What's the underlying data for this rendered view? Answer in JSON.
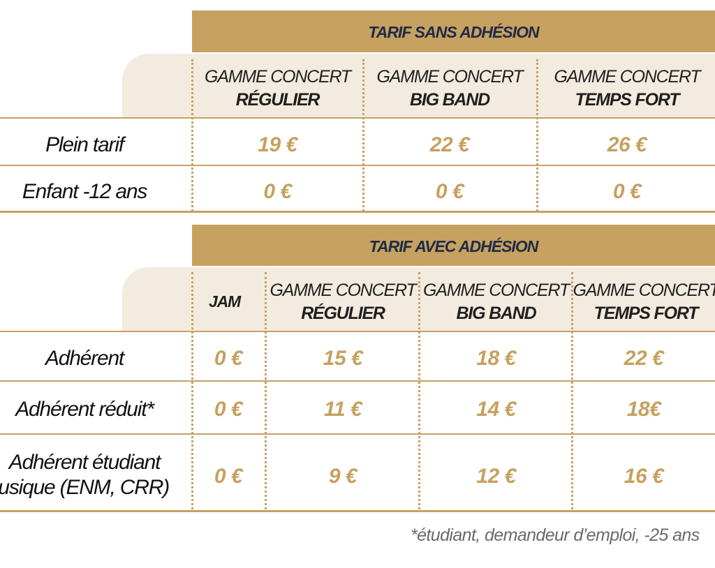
{
  "table1": {
    "band_title": "TARIF SANS ADHÉSION",
    "columns": [
      {
        "line1": "GAMME CONCERT",
        "line2": "RÉGULIER"
      },
      {
        "line1": "GAMME CONCERT",
        "line2": "BIG BAND"
      },
      {
        "line1": "GAMME CONCERT",
        "line2": "TEMPS FORT"
      }
    ],
    "rows": [
      {
        "label": "Plein tarif",
        "prices": [
          "19 €",
          "22 €",
          "26 €"
        ]
      },
      {
        "label": "Enfant -12 ans",
        "prices": [
          "0 €",
          "0 €",
          "0 €"
        ]
      }
    ]
  },
  "table2": {
    "band_title": "TARIF AVEC ADHÉSION",
    "columns": [
      {
        "line1": "JAM",
        "line2": ""
      },
      {
        "line1": "GAMME CONCERT",
        "line2": "RÉGULIER"
      },
      {
        "line1": "GAMME CONCERT",
        "line2": "BIG BAND"
      },
      {
        "line1": "GAMME CONCERT",
        "line2": "TEMPS FORT"
      }
    ],
    "rows": [
      {
        "label": "Adhérent",
        "label2": "",
        "prices": [
          "0 €",
          "15 €",
          "18 €",
          "22 €"
        ]
      },
      {
        "label": "Adhérent réduit*",
        "label2": "",
        "prices": [
          "0 €",
          "11 €",
          "14 €",
          "18€"
        ]
      },
      {
        "label": "Adhérent étudiant",
        "label2": "musique (ENM, CRR)",
        "prices": [
          "0 €",
          "9 €",
          "12 €",
          "16 €"
        ]
      }
    ]
  },
  "footnote": "*étudiant, demandeur d’emploi, -25 ans",
  "colors": {
    "gold": "#c6a15f",
    "cream": "#f3ebdf",
    "navy": "#1e2a48"
  }
}
